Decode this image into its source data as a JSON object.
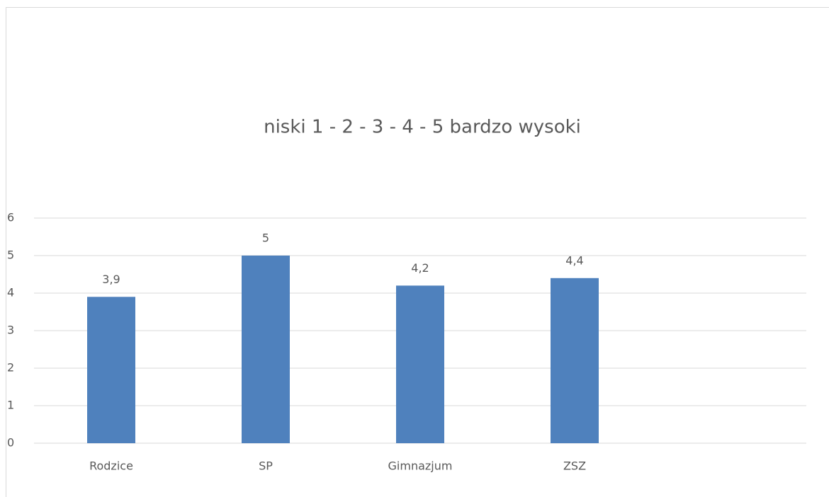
{
  "chart_data": {
    "type": "bar",
    "title": "niski 1 - 2 - 3 - 4 - 5 bardzo wysoki",
    "categories": [
      "Rodzice",
      "SP",
      "Gimnazjum",
      "ZSZ",
      null
    ],
    "values": [
      3.9,
      5,
      4.2,
      4.4,
      null
    ],
    "value_labels": [
      "3,9",
      "5",
      "4,2",
      "4,4",
      null
    ],
    "color": "#4f81bd",
    "ylim": [
      0,
      6
    ],
    "yticks": [
      0,
      1,
      2,
      3,
      4,
      5,
      6
    ],
    "grid": true
  }
}
